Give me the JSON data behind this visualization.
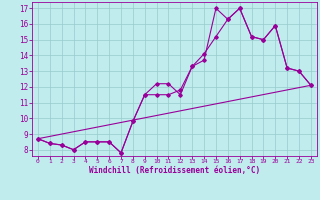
{
  "xlabel": "Windchill (Refroidissement éolien,°C)",
  "bg_color": "#c0ecee",
  "line_color": "#990099",
  "grid_color": "#99cccc",
  "xlim": [
    -0.5,
    23.5
  ],
  "ylim": [
    7.6,
    17.4
  ],
  "xticks": [
    0,
    1,
    2,
    3,
    4,
    5,
    6,
    7,
    8,
    9,
    10,
    11,
    12,
    13,
    14,
    15,
    16,
    17,
    18,
    19,
    20,
    21,
    22,
    23
  ],
  "yticks": [
    8,
    9,
    10,
    11,
    12,
    13,
    14,
    15,
    16,
    17
  ],
  "line1_x": [
    0,
    1,
    2,
    3,
    4,
    5,
    6,
    7,
    8,
    9,
    10,
    11,
    12,
    13,
    14,
    15,
    16,
    17,
    18,
    19,
    20,
    21,
    22,
    23
  ],
  "line1_y": [
    8.7,
    8.4,
    8.3,
    8.0,
    8.5,
    8.5,
    8.5,
    7.8,
    9.8,
    11.5,
    11.5,
    11.5,
    11.8,
    13.3,
    13.7,
    17.0,
    16.3,
    17.0,
    15.2,
    15.0,
    15.9,
    13.2,
    13.0,
    12.1
  ],
  "line2_x": [
    0,
    1,
    2,
    3,
    4,
    5,
    6,
    7,
    8,
    9,
    10,
    11,
    12,
    13,
    14,
    15,
    16,
    17,
    18,
    19,
    20,
    21,
    22,
    23
  ],
  "line2_y": [
    8.7,
    8.4,
    8.3,
    8.0,
    8.5,
    8.5,
    8.5,
    7.8,
    9.8,
    11.5,
    12.2,
    12.2,
    11.5,
    13.3,
    14.1,
    15.2,
    16.3,
    17.0,
    15.2,
    15.0,
    15.9,
    13.2,
    13.0,
    12.1
  ],
  "line3_x": [
    0,
    23
  ],
  "line3_y": [
    8.7,
    12.1
  ]
}
